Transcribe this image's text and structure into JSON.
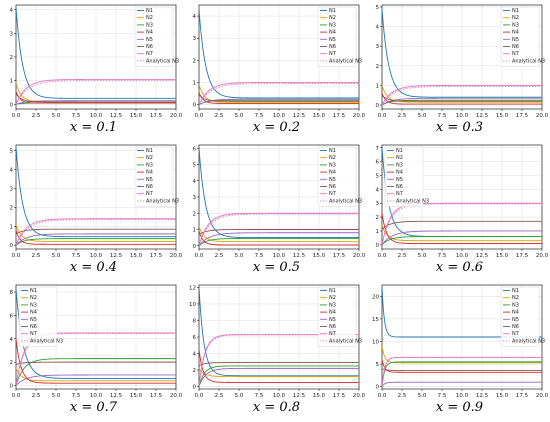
{
  "colors": {
    "N1": "#1f77b4",
    "N2": "#d8a400",
    "N3": "#2ca02c",
    "N4": "#d62728",
    "N5": "#9467bd",
    "N6": "#8c564b",
    "N7": "#e377c2",
    "Analytical N3": "#e377c2"
  },
  "chart_data": [
    {
      "type": "line",
      "caption": "x = 0.1",
      "xlim": [
        0,
        20
      ],
      "ylim": [
        -0.2,
        4.2
      ],
      "xticks": [
        "0.0",
        "2.5",
        "5.0",
        "7.5",
        "10.0",
        "12.5",
        "15.0",
        "17.5",
        "20.0"
      ],
      "yticks": [
        0,
        1,
        2,
        3,
        4
      ],
      "grid": true,
      "legend": "top-right",
      "legend_entries": [
        "N1",
        "N2",
        "N3",
        "N4",
        "N5",
        "N6",
        "N7",
        "Analytical N3"
      ],
      "series": [
        {
          "name": "N1",
          "start": 4.1,
          "end": 0.25,
          "k": 1.2
        },
        {
          "name": "N2",
          "start": 0.9,
          "end": 0.1,
          "k": 1.5
        },
        {
          "name": "N3",
          "start": 0.0,
          "end": 0.06,
          "k": 1.0
        },
        {
          "name": "N4",
          "start": 0.55,
          "end": 0.05,
          "k": 2.0
        },
        {
          "name": "N5",
          "start": 0.0,
          "end": 0.15,
          "k": 0.8
        },
        {
          "name": "N6",
          "start": 0.45,
          "end": 0.1,
          "k": 1.5
        },
        {
          "name": "N7",
          "start": 0.0,
          "end": 1.05,
          "k": 0.8
        },
        {
          "name": "Analytical N3",
          "start": 0.0,
          "end": 1.0,
          "k": 0.7,
          "dashed": true
        }
      ]
    },
    {
      "type": "line",
      "caption": "x = 0.2",
      "xlim": [
        0,
        20
      ],
      "ylim": [
        -0.2,
        4.5
      ],
      "xticks": [
        "0.0",
        "2.5",
        "5.0",
        "7.5",
        "10.0",
        "12.5",
        "15.0",
        "17.5",
        "20.0"
      ],
      "yticks": [
        0,
        1,
        2,
        3,
        4
      ],
      "grid": true,
      "legend": "top-right",
      "legend_entries": [
        "N1",
        "N2",
        "N3",
        "N4",
        "N5",
        "N6",
        "N7",
        "Analytical N3"
      ],
      "series": [
        {
          "name": "N1",
          "start": 4.3,
          "end": 0.3,
          "k": 1.2
        },
        {
          "name": "N2",
          "start": 0.9,
          "end": 0.1,
          "k": 1.5
        },
        {
          "name": "N3",
          "start": 0.0,
          "end": 0.2,
          "k": 1.0
        },
        {
          "name": "N4",
          "start": 0.55,
          "end": 0.05,
          "k": 2.0
        },
        {
          "name": "N5",
          "start": 0.0,
          "end": 0.25,
          "k": 0.8
        },
        {
          "name": "N6",
          "start": 0.45,
          "end": 0.15,
          "k": 1.5
        },
        {
          "name": "N7",
          "start": 0.0,
          "end": 1.0,
          "k": 0.8
        },
        {
          "name": "Analytical N3",
          "start": 0.0,
          "end": 0.95,
          "k": 0.7,
          "dashed": true
        }
      ]
    },
    {
      "type": "line",
      "caption": "x = 0.3",
      "xlim": [
        0,
        20
      ],
      "ylim": [
        -0.2,
        5.1
      ],
      "xticks": [
        "0.0",
        "2.5",
        "5.0",
        "7.5",
        "10.0",
        "12.5",
        "15.0",
        "17.5",
        "20.0"
      ],
      "yticks": [
        0,
        1,
        2,
        3,
        4,
        5
      ],
      "grid": true,
      "legend": "top-right",
      "legend_entries": [
        "N1",
        "N2",
        "N3",
        "N4",
        "N5",
        "N6",
        "N7",
        "Analytical N3"
      ],
      "series": [
        {
          "name": "N1",
          "start": 4.9,
          "end": 0.4,
          "k": 1.2
        },
        {
          "name": "N2",
          "start": 1.0,
          "end": 0.15,
          "k": 1.5
        },
        {
          "name": "N3",
          "start": 0.0,
          "end": 0.25,
          "k": 1.0
        },
        {
          "name": "N4",
          "start": 0.6,
          "end": 0.05,
          "k": 2.0
        },
        {
          "name": "N5",
          "start": 0.0,
          "end": 0.35,
          "k": 0.8
        },
        {
          "name": "N6",
          "start": 0.5,
          "end": 0.2,
          "k": 1.5
        },
        {
          "name": "N7",
          "start": 0.0,
          "end": 1.0,
          "k": 0.8
        },
        {
          "name": "Analytical N3",
          "start": 0.0,
          "end": 0.95,
          "k": 0.7,
          "dashed": true
        }
      ]
    },
    {
      "type": "line",
      "caption": "x = 0.4",
      "xlim": [
        0,
        20
      ],
      "ylim": [
        -0.2,
        5.3
      ],
      "xticks": [
        "0.0",
        "2.5",
        "5.0",
        "7.5",
        "10.0",
        "12.5",
        "15.0",
        "17.5",
        "20.0"
      ],
      "yticks": [
        0,
        1,
        2,
        3,
        4,
        5
      ],
      "grid": true,
      "legend": "top-right",
      "legend_entries": [
        "N1",
        "N2",
        "N3",
        "N4",
        "N5",
        "N6",
        "N7",
        "Analytical N3"
      ],
      "series": [
        {
          "name": "N1",
          "start": 5.2,
          "end": 0.45,
          "k": 1.2
        },
        {
          "name": "N2",
          "start": 1.1,
          "end": 0.2,
          "k": 1.5
        },
        {
          "name": "N3",
          "start": 0.0,
          "end": 0.35,
          "k": 1.0
        },
        {
          "name": "N4",
          "start": 0.8,
          "end": 0.05,
          "k": 2.0
        },
        {
          "name": "N5",
          "start": 0.0,
          "end": 0.6,
          "k": 0.8
        },
        {
          "name": "N6",
          "start": 0.6,
          "end": 0.85,
          "k": 1.0
        },
        {
          "name": "N7",
          "start": 0.0,
          "end": 1.4,
          "k": 0.8
        },
        {
          "name": "Analytical N3",
          "start": 0.0,
          "end": 1.35,
          "k": 0.7,
          "dashed": true
        }
      ]
    },
    {
      "type": "line",
      "caption": "x = 0.5",
      "xlim": [
        0,
        20
      ],
      "ylim": [
        -0.2,
        6.2
      ],
      "xticks": [
        "0.0",
        "2.5",
        "5.0",
        "7.5",
        "10.0",
        "12.5",
        "15.0",
        "17.5",
        "20.0"
      ],
      "yticks": [
        0,
        1,
        2,
        3,
        4,
        5,
        6
      ],
      "grid": true,
      "legend": "top-right",
      "legend_entries": [
        "N1",
        "N2",
        "N3",
        "N4",
        "N5",
        "N6",
        "N7",
        "Analytical N3"
      ],
      "series": [
        {
          "name": "N1",
          "start": 6.0,
          "end": 0.5,
          "k": 1.2
        },
        {
          "name": "N2",
          "start": 1.2,
          "end": 0.25,
          "k": 1.5
        },
        {
          "name": "N3",
          "start": 0.0,
          "end": 0.45,
          "k": 1.0
        },
        {
          "name": "N4",
          "start": 0.9,
          "end": 0.05,
          "k": 2.0
        },
        {
          "name": "N5",
          "start": 0.0,
          "end": 0.8,
          "k": 0.8
        },
        {
          "name": "N6",
          "start": 0.7,
          "end": 1.0,
          "k": 1.0
        },
        {
          "name": "N7",
          "start": 0.0,
          "end": 2.0,
          "k": 0.9
        },
        {
          "name": "Analytical N3",
          "start": 0.0,
          "end": 1.95,
          "k": 0.8,
          "dashed": true
        }
      ]
    },
    {
      "type": "line",
      "caption": "x = 0.6",
      "xlim": [
        0,
        20
      ],
      "ylim": [
        -0.3,
        7.2
      ],
      "xticks": [
        "0.0",
        "2.5",
        "5.0",
        "7.5",
        "10.0",
        "12.5",
        "15.0",
        "17.5",
        "20.0"
      ],
      "yticks": [
        0,
        1,
        2,
        3,
        4,
        5,
        6,
        7
      ],
      "grid": true,
      "legend": "top-left",
      "legend_entries": [
        "N1",
        "N2",
        "N3",
        "N4",
        "N5",
        "N6",
        "N7",
        "Analytical N3"
      ],
      "series": [
        {
          "name": "N1",
          "start": 7.0,
          "end": 0.6,
          "k": 1.2
        },
        {
          "name": "N2",
          "start": 1.4,
          "end": 0.3,
          "k": 1.5
        },
        {
          "name": "N3",
          "start": 0.0,
          "end": 0.6,
          "k": 1.0
        },
        {
          "name": "N4",
          "start": 2.3,
          "end": 0.1,
          "k": 1.8
        },
        {
          "name": "N5",
          "start": 0.0,
          "end": 1.0,
          "k": 0.8
        },
        {
          "name": "N6",
          "start": 1.1,
          "end": 1.7,
          "k": 1.0
        },
        {
          "name": "N7",
          "start": 0.0,
          "end": 3.0,
          "k": 1.0
        },
        {
          "name": "Analytical N3",
          "start": 0.0,
          "end": 2.95,
          "k": 0.9,
          "dashed": true
        }
      ]
    },
    {
      "type": "line",
      "caption": "x = 0.7",
      "xlim": [
        0,
        20
      ],
      "ylim": [
        -0.3,
        8.6
      ],
      "xticks": [
        "0.0",
        "2.5",
        "5.0",
        "7.5",
        "10.0",
        "12.5",
        "15.0",
        "17.5",
        "20.0"
      ],
      "yticks": [
        0,
        2,
        4,
        6,
        8
      ],
      "grid": true,
      "legend": "top-left",
      "legend_entries": [
        "N1",
        "N2",
        "N3",
        "N4",
        "N5",
        "N6",
        "N7",
        "Analytical N3"
      ],
      "series": [
        {
          "name": "N1",
          "start": 8.3,
          "end": 0.6,
          "k": 1.1
        },
        {
          "name": "N2",
          "start": 1.5,
          "end": 0.4,
          "k": 1.5
        },
        {
          "name": "N3",
          "start": 0.0,
          "end": 2.3,
          "k": 1.0
        },
        {
          "name": "N4",
          "start": 4.0,
          "end": 0.2,
          "k": 1.6
        },
        {
          "name": "N5",
          "start": 0.0,
          "end": 0.9,
          "k": 0.8
        },
        {
          "name": "N6",
          "start": 1.8,
          "end": 2.0,
          "k": 1.0
        },
        {
          "name": "N7",
          "start": 0.0,
          "end": 4.5,
          "k": 1.0
        },
        {
          "name": "Analytical N3",
          "start": 0.0,
          "end": 4.45,
          "k": 0.9,
          "dashed": true
        }
      ]
    },
    {
      "type": "line",
      "caption": "x = 0.8",
      "xlim": [
        0,
        20
      ],
      "ylim": [
        -0.3,
        12.3
      ],
      "xticks": [
        "0.0",
        "2.5",
        "5.0",
        "7.5",
        "10.0",
        "12.5",
        "15.0",
        "17.5",
        "20.0"
      ],
      "yticks": [
        0,
        2,
        4,
        6,
        8,
        10,
        12
      ],
      "grid": true,
      "legend": "top-right",
      "legend_entries": [
        "N1",
        "N2",
        "N3",
        "N4",
        "N5",
        "N6",
        "N7",
        "Analytical N3"
      ],
      "series": [
        {
          "name": "N1",
          "start": 12.0,
          "end": 1.3,
          "k": 1.6
        },
        {
          "name": "N2",
          "start": 2.2,
          "end": 1.2,
          "k": 1.5
        },
        {
          "name": "N3",
          "start": 0.0,
          "end": 2.5,
          "k": 1.5
        },
        {
          "name": "N4",
          "start": 4.5,
          "end": 0.5,
          "k": 2.0
        },
        {
          "name": "N5",
          "start": 0.0,
          "end": 2.2,
          "k": 1.2
        },
        {
          "name": "N6",
          "start": 2.5,
          "end": 2.9,
          "k": 1.5
        },
        {
          "name": "N7",
          "start": 0.0,
          "end": 6.3,
          "k": 1.4
        },
        {
          "name": "Analytical N3",
          "start": 0.0,
          "end": 6.25,
          "k": 1.3,
          "dashed": true
        }
      ]
    },
    {
      "type": "line",
      "caption": "x = 0.9",
      "xlim": [
        0,
        20
      ],
      "ylim": [
        -0.5,
        22.5
      ],
      "xticks": [
        "0.0",
        "2.5",
        "5.0",
        "7.5",
        "10.0",
        "12.5",
        "15.0",
        "17.5",
        "20.0"
      ],
      "yticks": [
        0,
        5,
        10,
        15,
        20
      ],
      "grid": true,
      "legend": "top-right",
      "legend_entries": [
        "N1",
        "N2",
        "N3",
        "N4",
        "N5",
        "N6",
        "N7",
        "Analytical N3"
      ],
      "series": [
        {
          "name": "N1",
          "start": 22.0,
          "end": 11.0,
          "k": 3.5
        },
        {
          "name": "N2",
          "start": 9.0,
          "end": 5.3,
          "k": 3.0
        },
        {
          "name": "N3",
          "start": 0.0,
          "end": 5.5,
          "k": 3.0
        },
        {
          "name": "N4",
          "start": 6.0,
          "end": 3.2,
          "k": 3.0
        },
        {
          "name": "N5",
          "start": 0.0,
          "end": 1.0,
          "k": 3.0
        },
        {
          "name": "N6",
          "start": 4.0,
          "end": 3.6,
          "k": 2.0
        },
        {
          "name": "N7",
          "start": 0.0,
          "end": 6.5,
          "k": 3.0
        },
        {
          "name": "Analytical N3",
          "start": 0.0,
          "end": 6.45,
          "k": 2.8,
          "dashed": true
        }
      ]
    }
  ]
}
